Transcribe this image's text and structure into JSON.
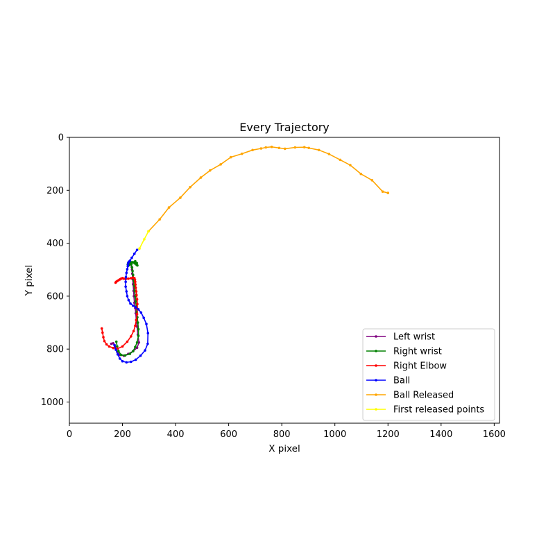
{
  "chart_data": {
    "type": "line",
    "title": "Every Trajectory",
    "xlabel": "X pixel",
    "ylabel": "Y pixel",
    "xlim": [
      0,
      1620
    ],
    "ylim": [
      1080,
      0
    ],
    "y_inverted": true,
    "xticks": [
      0,
      200,
      400,
      600,
      800,
      1000,
      1200,
      1400,
      1600
    ],
    "yticks": [
      0,
      200,
      400,
      600,
      800,
      1000
    ],
    "grid": false,
    "legend_position": "lower-right",
    "series": [
      {
        "name": "Left wrist",
        "color": "#800080",
        "x": [
          158,
          165,
          172,
          180,
          190,
          205,
          222,
          240,
          255,
          262,
          258,
          255,
          252,
          250,
          248,
          245,
          243,
          242,
          240,
          238,
          237,
          236,
          235
        ],
        "y": [
          780,
          778,
          790,
          810,
          822,
          825,
          818,
          808,
          795,
          775,
          745,
          715,
          690,
          665,
          645,
          625,
          600,
          580,
          555,
          535,
          515,
          500,
          490
        ]
      },
      {
        "name": "Right wrist",
        "color": "#008000",
        "x": [
          177,
          180,
          185,
          195,
          210,
          228,
          240,
          248,
          255,
          260,
          260,
          258,
          256,
          254,
          252,
          250,
          248,
          246,
          244,
          242,
          240,
          238,
          236,
          233,
          228,
          223,
          220,
          225,
          232,
          240,
          248,
          254,
          256,
          252,
          246,
          238,
          230,
          222
        ],
        "y": [
          772,
          790,
          808,
          822,
          824,
          818,
          808,
          792,
          775,
          750,
          725,
          700,
          680,
          660,
          640,
          620,
          600,
          580,
          560,
          540,
          520,
          505,
          492,
          480,
          472,
          476,
          480,
          483,
          478,
          472,
          468,
          475,
          484,
          480,
          476,
          472,
          470,
          474
        ]
      },
      {
        "name": "Right Elbow",
        "color": "#ff0000",
        "x": [
          122,
          125,
          128,
          132,
          140,
          150,
          165,
          182,
          200,
          218,
          232,
          242,
          248,
          252,
          255,
          256,
          256,
          255,
          253,
          252,
          250,
          249,
          248,
          247,
          245,
          240,
          232,
          222,
          212,
          205,
          200,
          195,
          190,
          185,
          180,
          176,
          174
        ],
        "y": [
          722,
          738,
          755,
          770,
          782,
          790,
          796,
          798,
          790,
          772,
          752,
          732,
          712,
          690,
          668,
          648,
          630,
          612,
          596,
          582,
          568,
          556,
          546,
          538,
          532,
          530,
          532,
          534,
          535,
          534,
          532,
          534,
          537,
          540,
          543,
          546,
          549
        ]
      },
      {
        "name": "Ball",
        "color": "#0000ff",
        "x": [
          170,
          175,
          182,
          190,
          200,
          215,
          232,
          250,
          268,
          285,
          295,
          296,
          290,
          280,
          270,
          260,
          250,
          240,
          230,
          223,
          218,
          215,
          212,
          212,
          213,
          215,
          218,
          220,
          221,
          222,
          224,
          228,
          235,
          245,
          255
        ],
        "y": [
          785,
          802,
          820,
          836,
          846,
          850,
          848,
          840,
          825,
          805,
          780,
          740,
          705,
          682,
          662,
          650,
          642,
          636,
          628,
          615,
          600,
          582,
          564,
          546,
          528,
          512,
          498,
          487,
          480,
          474,
          470,
          466,
          455,
          440,
          425
        ]
      },
      {
        "name": "Ball Released",
        "color": "#ffa500",
        "x": [
          298,
          340,
          375,
          418,
          455,
          495,
          530,
          570,
          608,
          650,
          690,
          722,
          740,
          762,
          790,
          812,
          850,
          885,
          902,
          940,
          978,
          1020,
          1058,
          1098,
          1140,
          1180,
          1200
        ],
        "y": [
          355,
          310,
          265,
          228,
          188,
          152,
          125,
          102,
          75,
          62,
          48,
          42,
          38,
          36,
          40,
          43,
          38,
          37,
          40,
          48,
          63,
          85,
          105,
          138,
          162,
          205,
          210
        ]
      },
      {
        "name": "First released points",
        "color": "#ffff00",
        "x": [
          264,
          282,
          298
        ],
        "y": [
          420,
          385,
          355
        ]
      }
    ]
  }
}
